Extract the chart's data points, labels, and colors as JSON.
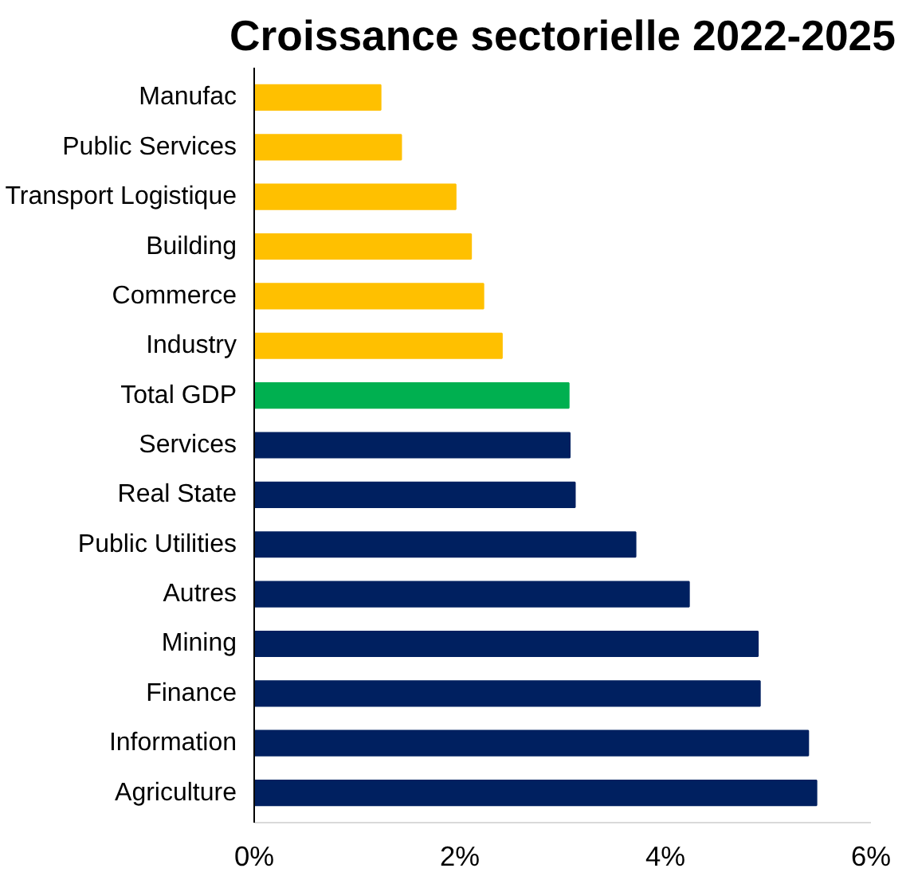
{
  "chart_data": {
    "type": "bar",
    "orientation": "horizontal",
    "title": "Croissance sectorielle 2022-2025",
    "categories": [
      "Manufac",
      "Public Services",
      "Transport Logistique",
      "Building",
      "Commerce",
      "Industry",
      "Total GDP",
      "Services",
      "Real State",
      "Public Utilities",
      "Autres",
      "Mining",
      "Finance",
      "Information",
      "Agriculture"
    ],
    "values": [
      1.23,
      1.43,
      1.96,
      2.11,
      2.23,
      2.41,
      3.06,
      3.07,
      3.12,
      3.71,
      4.23,
      4.9,
      4.92,
      5.39,
      5.47
    ],
    "colors": [
      "#ffc000",
      "#ffc000",
      "#ffc000",
      "#ffc000",
      "#ffc000",
      "#ffc000",
      "#00b050",
      "#002060",
      "#002060",
      "#002060",
      "#002060",
      "#002060",
      "#002060",
      "#002060",
      "#002060"
    ],
    "xlim": [
      0,
      6
    ],
    "xticks": [
      {
        "value": 0,
        "label": "0%"
      },
      {
        "value": 2,
        "label": "2%"
      },
      {
        "value": 4,
        "label": "4%"
      },
      {
        "value": 6,
        "label": "6%"
      }
    ],
    "grid": false
  }
}
